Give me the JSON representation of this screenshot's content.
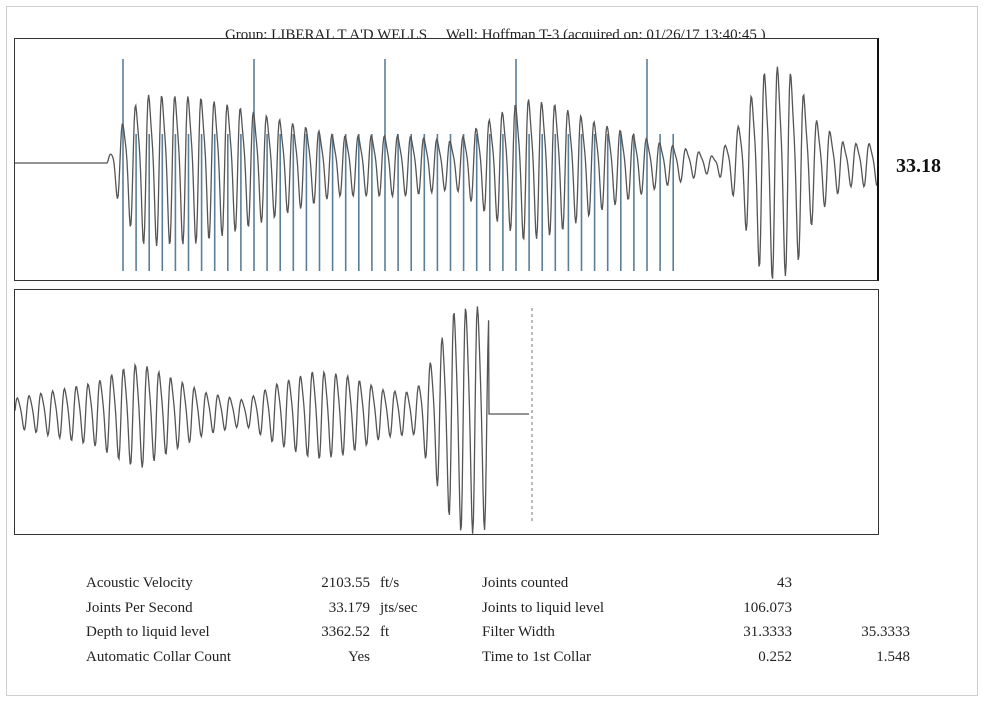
{
  "header": {
    "group": "Group: LIBERAL T A'D WELLS",
    "well": "Well: Hoffman T-3 (acquired on: 01/26/17 13:40:45 )"
  },
  "side_value": "33.18",
  "stats": {
    "rows": [
      {
        "label": "Acoustic Velocity",
        "value": "2103.55",
        "unit": "ft/s",
        "label2": "Joints counted",
        "value2": "43",
        "value3": ""
      },
      {
        "label": "Joints Per Second",
        "value": "33.179",
        "unit": "jts/sec",
        "label2": "Joints to liquid level",
        "value2": "106.073",
        "value3": ""
      },
      {
        "label": "Depth to liquid level",
        "value": "3362.52",
        "unit": "ft",
        "label2": "Filter Width",
        "value2": "31.3333",
        "value3": "35.3333"
      },
      {
        "label": "Automatic Collar Count",
        "value": "Yes",
        "unit": "",
        "label2": "Time to 1st Collar",
        "value2": "0.252",
        "value3": "1.548"
      }
    ]
  },
  "chart_data": [
    {
      "type": "line",
      "description_of_series": "acoustic echo trace with collar markers",
      "series_color": "#555555",
      "marker_color": "#5b7f99",
      "collar_markers_count": 43,
      "annotation": "33.18"
    },
    {
      "type": "line",
      "series_color": "#555555",
      "liquid_level_marker": "dashed vertical line"
    }
  ]
}
